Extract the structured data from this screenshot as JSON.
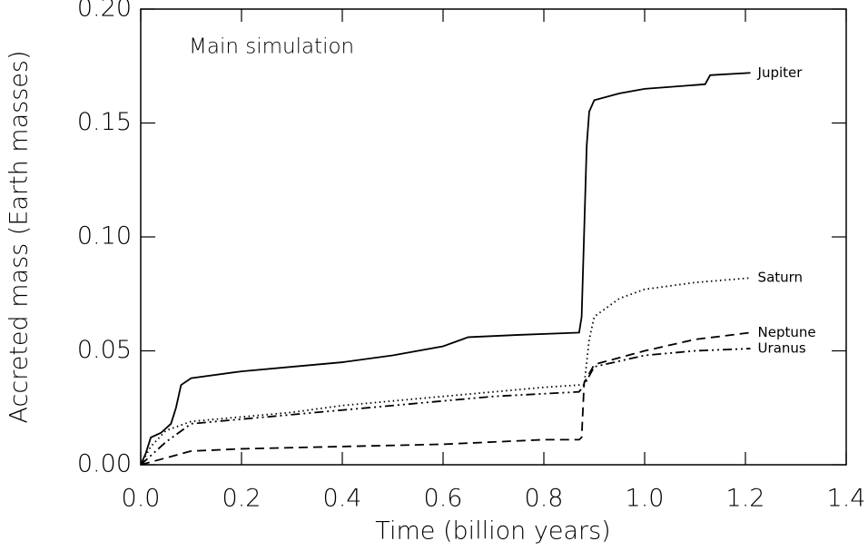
{
  "chart_data": {
    "type": "line",
    "annotation": "Main simulation",
    "xlabel": "Time (billion years)",
    "ylabel": "Accreted mass (Earth masses)",
    "xlim": [
      0,
      1.4
    ],
    "ylim": [
      0,
      0.2
    ],
    "xticks": [
      {
        "value": 0,
        "label": "0.0"
      },
      {
        "value": 0.2,
        "label": "0.2"
      },
      {
        "value": 0.4,
        "label": "0.4"
      },
      {
        "value": 0.6,
        "label": "0.6"
      },
      {
        "value": 0.8,
        "label": "0.8"
      },
      {
        "value": 1,
        "label": "1.0"
      },
      {
        "value": 1.2,
        "label": "1.2"
      },
      {
        "value": 1.4,
        "label": "1.4"
      }
    ],
    "yticks": [
      {
        "value": 0,
        "label": "0.00"
      },
      {
        "value": 0.05,
        "label": "0.05"
      },
      {
        "value": 0.1,
        "label": "0.10"
      },
      {
        "value": 0.15,
        "label": "0.15"
      },
      {
        "value": 0.2,
        "label": "0.20"
      }
    ],
    "series": [
      {
        "name": "Jupiter",
        "color": "#000000",
        "line_style": "solid",
        "x": [
          0,
          0.01,
          0.02,
          0.04,
          0.06,
          0.07,
          0.08,
          0.1,
          0.2,
          0.3,
          0.4,
          0.5,
          0.6,
          0.65,
          0.75,
          0.87,
          0.875,
          0.885,
          0.89,
          0.9,
          0.95,
          1.0,
          1.12,
          1.13,
          1.21
        ],
        "values": [
          0,
          0.005,
          0.012,
          0.014,
          0.018,
          0.025,
          0.035,
          0.038,
          0.041,
          0.043,
          0.045,
          0.048,
          0.052,
          0.056,
          0.057,
          0.058,
          0.065,
          0.14,
          0.155,
          0.16,
          0.163,
          0.165,
          0.167,
          0.171,
          0.172
        ]
      },
      {
        "name": "Saturn",
        "color": "#000000",
        "line_style": "dotted",
        "x": [
          0,
          0.02,
          0.05,
          0.1,
          0.2,
          0.3,
          0.4,
          0.5,
          0.6,
          0.7,
          0.8,
          0.87,
          0.88,
          0.89,
          0.9,
          0.95,
          1.0,
          1.1,
          1.21
        ],
        "values": [
          0,
          0.008,
          0.015,
          0.019,
          0.021,
          0.023,
          0.026,
          0.028,
          0.03,
          0.032,
          0.034,
          0.035,
          0.035,
          0.055,
          0.065,
          0.073,
          0.077,
          0.08,
          0.082
        ]
      },
      {
        "name": "Neptune",
        "color": "#000000",
        "line_style": "dashed",
        "x": [
          0,
          0.05,
          0.1,
          0.2,
          0.4,
          0.6,
          0.7,
          0.8,
          0.87,
          0.875,
          0.88,
          0.9,
          1.0,
          1.1,
          1.21
        ],
        "values": [
          0,
          0.003,
          0.006,
          0.007,
          0.008,
          0.009,
          0.01,
          0.011,
          0.011,
          0.012,
          0.036,
          0.044,
          0.05,
          0.055,
          0.058
        ]
      },
      {
        "name": "Uranus",
        "color": "#000000",
        "line_style": "dash-dot-dot",
        "x": [
          0,
          0.05,
          0.1,
          0.2,
          0.3,
          0.4,
          0.5,
          0.6,
          0.7,
          0.87,
          0.88,
          0.9,
          1.0,
          1.1,
          1.21
        ],
        "values": [
          0,
          0.01,
          0.018,
          0.02,
          0.022,
          0.024,
          0.026,
          0.028,
          0.03,
          0.032,
          0.035,
          0.043,
          0.048,
          0.05,
          0.051
        ]
      }
    ]
  }
}
